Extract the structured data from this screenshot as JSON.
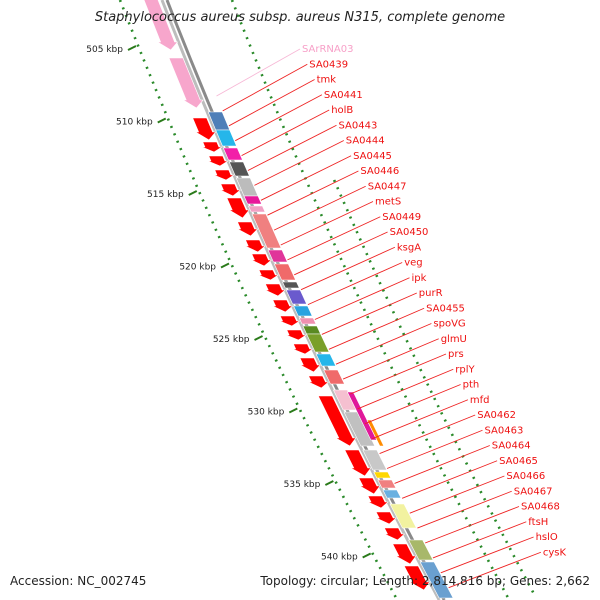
{
  "header": {
    "title": "Staphylococcus aureus subsp. aureus N315, complete genome"
  },
  "footer": {
    "accession": "Accession: NC_002745",
    "info": "Topology: circular; Length: 2,814,816 bp; Genes: 2,662"
  },
  "colors": {
    "gene_label": "#ee1111",
    "rna_label": "#f7a0c8",
    "leader_line": "#ee2222",
    "rna_leader": "#f7b8d6",
    "backbone": "#999999",
    "tick_green": "#2a7a1a",
    "tick_dotted": "#2a8a2a",
    "cds_red": "#ff0000",
    "rna_pink": "#f7a6cc"
  },
  "scale_labels": [
    {
      "text": "505 kbp"
    },
    {
      "text": "510 kbp"
    },
    {
      "text": "515 kbp"
    },
    {
      "text": "520 kbp"
    },
    {
      "text": "525 kbp"
    },
    {
      "text": "530 kbp"
    },
    {
      "text": "535 kbp"
    },
    {
      "text": "540 kbp"
    }
  ],
  "gene_labels": [
    {
      "text": "SArRNA03",
      "rna": true
    },
    {
      "text": "SA0439"
    },
    {
      "text": "tmk"
    },
    {
      "text": "SA0441"
    },
    {
      "text": "holB"
    },
    {
      "text": "SA0443"
    },
    {
      "text": "SA0444"
    },
    {
      "text": "SA0445"
    },
    {
      "text": "SA0446"
    },
    {
      "text": "SA0447"
    },
    {
      "text": "metS"
    },
    {
      "text": "SA0449"
    },
    {
      "text": "SA0450"
    },
    {
      "text": "ksgA"
    },
    {
      "text": "veg"
    },
    {
      "text": "ipk"
    },
    {
      "text": "purR"
    },
    {
      "text": "SA0455"
    },
    {
      "text": "spoVG"
    },
    {
      "text": "glmU"
    },
    {
      "text": "prs"
    },
    {
      "text": "rplY"
    },
    {
      "text": "pth"
    },
    {
      "text": "mfd"
    },
    {
      "text": "SA0462"
    },
    {
      "text": "SA0463"
    },
    {
      "text": "SA0464"
    },
    {
      "text": "SA0465"
    },
    {
      "text": "SA0466"
    },
    {
      "text": "SA0467"
    },
    {
      "text": "SA0468"
    },
    {
      "text": "ftsH"
    },
    {
      "text": "hslO"
    },
    {
      "text": "cysK"
    }
  ]
}
